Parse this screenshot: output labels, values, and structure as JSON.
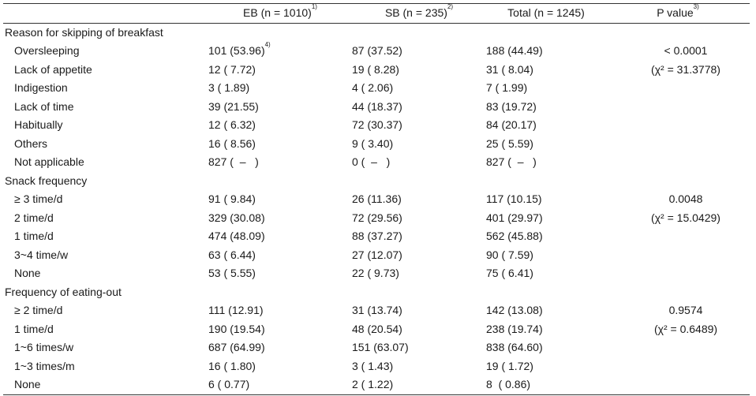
{
  "header": {
    "eb": "EB (n = 1010)",
    "eb_sup": "1)",
    "sb": "SB (n = 235)",
    "sb_sup": "2)",
    "total": "Total (n = 1245)",
    "pvalue": "P value",
    "pvalue_sup": "3)"
  },
  "sections": [
    {
      "title": "Reason for skipping of breakfast",
      "rows": [
        {
          "label": "Oversleeping",
          "eb": "101 (53.96)",
          "eb_sup": "4)",
          "sb": "87 (37.52)",
          "total": "188 (44.49)",
          "p": "< 0.0001"
        },
        {
          "label": "Lack of appetite",
          "eb": "12 ( 7.72)",
          "sb": "19 ( 8.28)",
          "total": "31 ( 8.04)",
          "p": "(χ² = 31.3778)"
        },
        {
          "label": "Indigestion",
          "eb": "3 ( 1.89)",
          "sb": "4 ( 2.06)",
          "total": "7 ( 1.99)",
          "p": ""
        },
        {
          "label": "Lack of time",
          "eb": "39 (21.55)",
          "sb": "44 (18.37)",
          "total": "83 (19.72)",
          "p": ""
        },
        {
          "label": "Habitually",
          "eb": "12 ( 6.32)",
          "sb": "72 (30.37)",
          "total": "84 (20.17)",
          "p": ""
        },
        {
          "label": "Others",
          "eb": "16 ( 8.56)",
          "sb": "9 ( 3.40)",
          "total": "25 ( 5.59)",
          "p": ""
        },
        {
          "label": "Not applicable",
          "eb": "827 (  –   )",
          "sb": "0 (  –   )",
          "total": "827 (  –   )",
          "p": ""
        }
      ]
    },
    {
      "title": "Snack frequency",
      "rows": [
        {
          "label": "≥ 3 time/d",
          "eb": "91 ( 9.84)",
          "sb": "26 (11.36)",
          "total": "117 (10.15)",
          "p": "0.0048"
        },
        {
          "label": "2 time/d",
          "eb": "329 (30.08)",
          "sb": "72 (29.56)",
          "total": "401 (29.97)",
          "p": "(χ² = 15.0429)"
        },
        {
          "label": "1 time/d",
          "eb": "474 (48.09)",
          "sb": "88 (37.27)",
          "total": "562 (45.88)",
          "p": ""
        },
        {
          "label": "3~4 time/w",
          "eb": "63 ( 6.44)",
          "sb": "27 (12.07)",
          "total": "90 ( 7.59)",
          "p": ""
        },
        {
          "label": "None",
          "eb": "53 ( 5.55)",
          "sb": "22 ( 9.73)",
          "total": "75 ( 6.41)",
          "p": ""
        }
      ]
    },
    {
      "title": "Frequency of eating-out",
      "rows": [
        {
          "label": "≥ 2 time/d",
          "eb": "111 (12.91)",
          "sb": "31 (13.74)",
          "total": "142 (13.08)",
          "p": "0.9574"
        },
        {
          "label": "1 time/d",
          "eb": "190 (19.54)",
          "sb": "48 (20.54)",
          "total": "238 (19.74)",
          "p": "(χ² =   0.6489)"
        },
        {
          "label": "1~6 times/w",
          "eb": "687 (64.99)",
          "sb": "151 (63.07)",
          "total": "838 (64.60)",
          "p": ""
        },
        {
          "label": "1~3 times/m",
          "eb": "16 ( 1.80)",
          "sb": "3 ( 1.43)",
          "total": "19 ( 1.72)",
          "p": ""
        },
        {
          "label": "None",
          "eb": "6 ( 0.77)",
          "sb": "2 ( 1.22)",
          "total": "8  ( 0.86)",
          "p": ""
        }
      ]
    }
  ]
}
